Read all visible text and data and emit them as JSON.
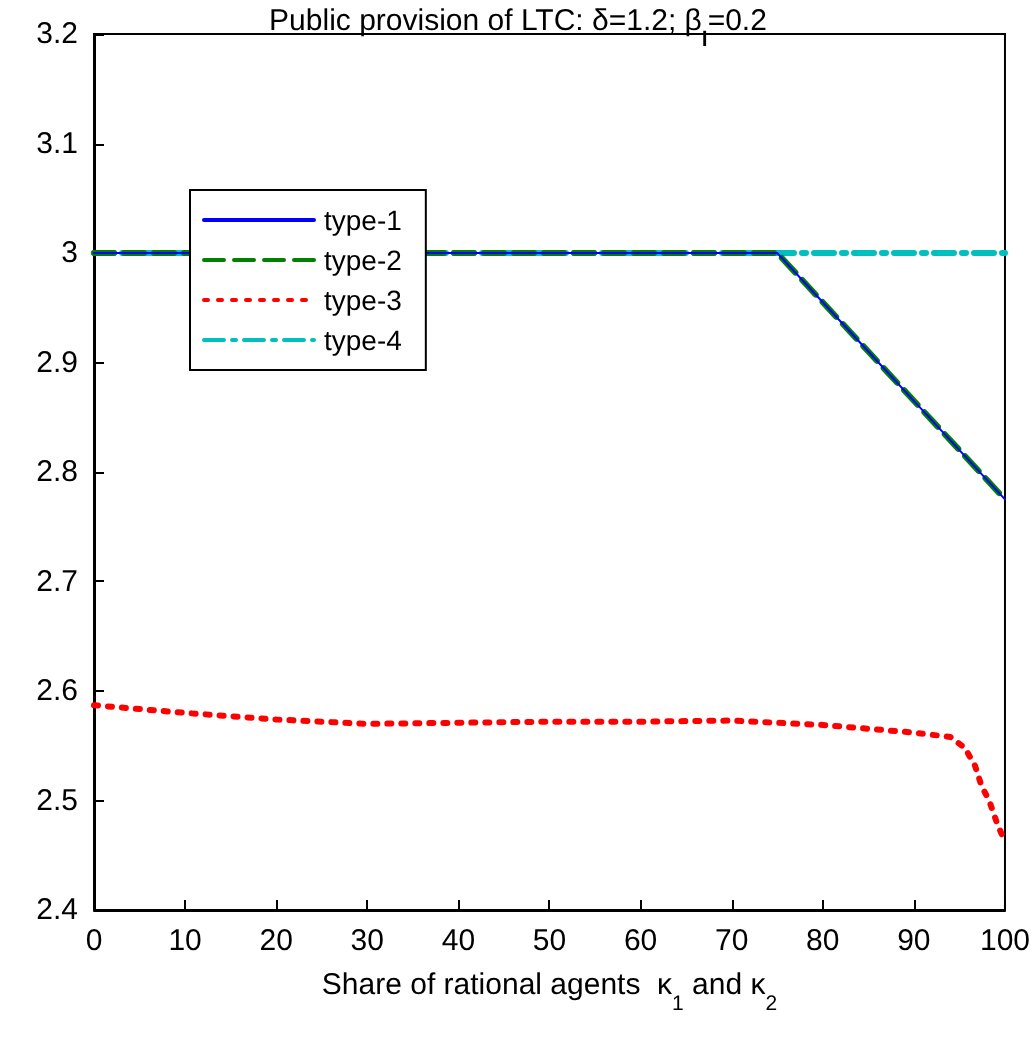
{
  "chart_data": {
    "type": "line",
    "title": "Public provision of LTC: δ=1.2; β$_{l}$=0.2",
    "xlabel": "Share of rational agents  κ$_{1}$ and κ$_{2}$",
    "xlim": [
      0,
      100
    ],
    "xticks": [
      0,
      10,
      20,
      30,
      40,
      50,
      60,
      70,
      80,
      90,
      100
    ],
    "ylim": [
      2.4,
      3.2
    ],
    "yticks": [
      2.4,
      2.5,
      2.6,
      2.7,
      2.8,
      2.9,
      3,
      3.1,
      3.2
    ],
    "grid": false,
    "legend": "top left",
    "marker": "none",
    "series": [
      {
        "name": "type-1",
        "color": "#0000ff",
        "line_style": "solid",
        "x": [
          0,
          50,
          75,
          80,
          85,
          90,
          95,
          100
        ],
        "values": [
          3,
          3,
          3,
          2.955,
          2.91,
          2.865,
          2.82,
          2.775
        ]
      },
      {
        "name": "type-2",
        "color": "#008000",
        "line_style": "dashed",
        "x": [
          0,
          50,
          75,
          80,
          85,
          90,
          95,
          100
        ],
        "values": [
          3,
          3,
          3,
          2.955,
          2.91,
          2.865,
          2.82,
          2.775
        ]
      },
      {
        "name": "type-3",
        "color": "#ff0000",
        "line_style": "dotted",
        "x": [
          0,
          10,
          20,
          30,
          40,
          50,
          60,
          70,
          80,
          90,
          94,
          95.6,
          96.7,
          97.4,
          98.3,
          99.1,
          100
        ],
        "values": [
          2.587,
          2.58,
          2.574,
          2.57,
          2.571,
          2.572,
          2.572,
          2.573,
          2.569,
          2.562,
          2.558,
          2.548,
          2.532,
          2.514,
          2.499,
          2.48,
          2.462
        ]
      },
      {
        "name": "type-4",
        "color": "#00bfbf",
        "line_style": "dashdot",
        "x": [
          0,
          50,
          100
        ],
        "values": [
          3,
          3,
          3
        ]
      }
    ]
  }
}
